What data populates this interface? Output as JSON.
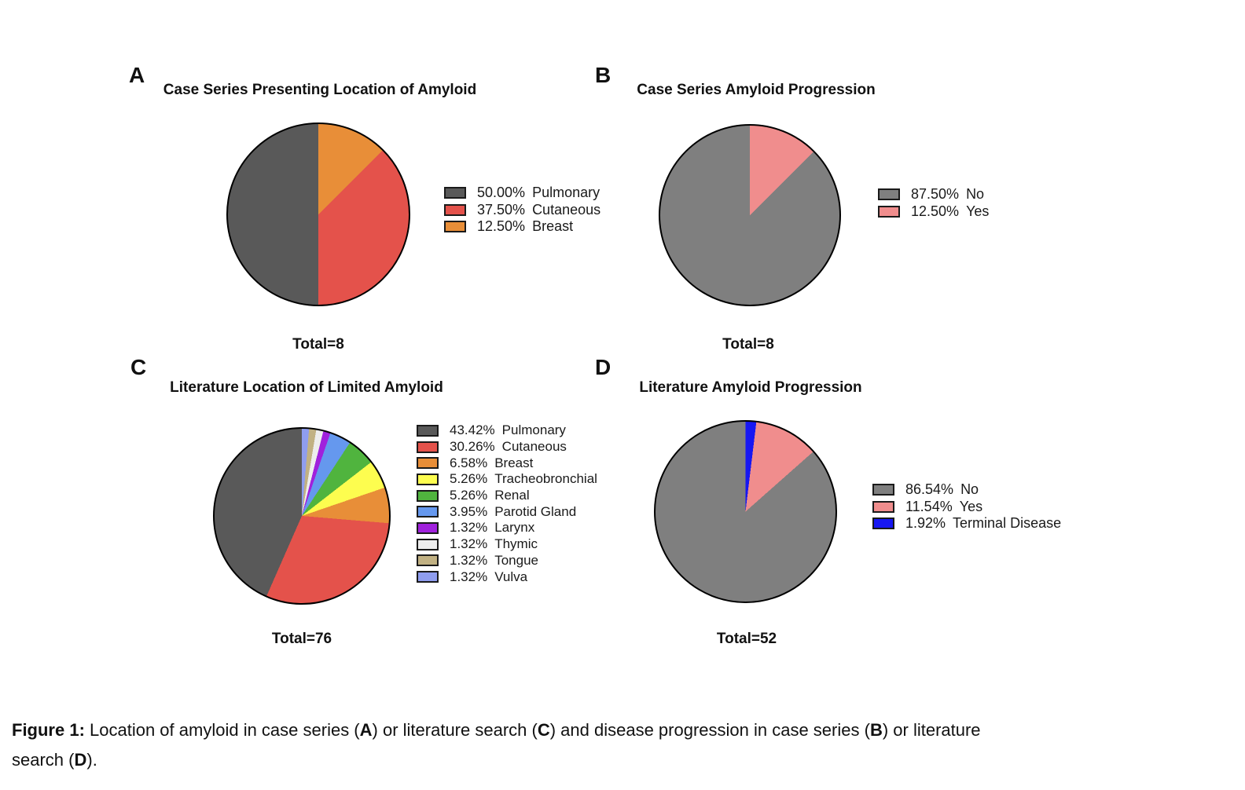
{
  "chart_data": [
    {
      "id": "A",
      "panel_label": "A",
      "type": "pie",
      "title": "Case Series Presenting Location of Amyloid",
      "total_label": "Total=8",
      "total": 8,
      "legend_position": "right",
      "slice_draw_order": "reverse legend order, clockwise from 12 o'clock",
      "slices": [
        {
          "pct": "50.00%",
          "value": 50.0,
          "label": "Pulmonary",
          "color": "#595959"
        },
        {
          "pct": "37.50%",
          "value": 37.5,
          "label": "Cutaneous",
          "color": "#E4524B"
        },
        {
          "pct": "12.50%",
          "value": 12.5,
          "label": "Breast",
          "color": "#E88E38"
        }
      ]
    },
    {
      "id": "B",
      "panel_label": "B",
      "type": "pie",
      "title": "Case Series Amyloid Progression",
      "total_label": "Total=8",
      "total": 8,
      "legend_position": "right",
      "slice_draw_order": "reverse legend order, clockwise from 12 o'clock",
      "slices": [
        {
          "pct": "87.50%",
          "value": 87.5,
          "label": "No",
          "color": "#7F7F7F"
        },
        {
          "pct": "12.50%",
          "value": 12.5,
          "label": "Yes",
          "color": "#F08D8D"
        }
      ]
    },
    {
      "id": "C",
      "panel_label": "C",
      "type": "pie",
      "title": "Literature Location of Limited Amyloid",
      "total_label": "Total=76",
      "total": 76,
      "legend_position": "right",
      "slice_draw_order": "reverse legend order, clockwise from 12 o'clock",
      "slices": [
        {
          "pct": "43.42%",
          "value": 43.42,
          "label": "Pulmonary",
          "color": "#595959"
        },
        {
          "pct": "30.26%",
          "value": 30.26,
          "label": "Cutaneous",
          "color": "#E4524B"
        },
        {
          "pct": "6.58%",
          "value": 6.58,
          "label": "Breast",
          "color": "#E88E38"
        },
        {
          "pct": "5.26%",
          "value": 5.26,
          "label": "Tracheobronchial",
          "color": "#FDFD4F"
        },
        {
          "pct": "5.26%",
          "value": 5.26,
          "label": "Renal",
          "color": "#50B43E"
        },
        {
          "pct": "3.95%",
          "value": 3.95,
          "label": "Parotid Gland",
          "color": "#6598EE"
        },
        {
          "pct": "1.32%",
          "value": 1.32,
          "label": "Larynx",
          "color": "#A021DC"
        },
        {
          "pct": "1.32%",
          "value": 1.32,
          "label": "Thymic",
          "color": "#EDEDED"
        },
        {
          "pct": "1.32%",
          "value": 1.32,
          "label": "Tongue",
          "color": "#C1B183"
        },
        {
          "pct": "1.32%",
          "value": 1.32,
          "label": "Vulva",
          "color": "#8F9DEF"
        }
      ]
    },
    {
      "id": "D",
      "panel_label": "D",
      "type": "pie",
      "title": "Literature Amyloid Progression",
      "total_label": "Total=52",
      "total": 52,
      "legend_position": "right",
      "slice_draw_order": "reverse legend order, clockwise from 12 o'clock",
      "slices": [
        {
          "pct": "86.54%",
          "value": 86.54,
          "label": "No",
          "color": "#7F7F7F"
        },
        {
          "pct": "11.54%",
          "value": 11.54,
          "label": "Yes",
          "color": "#F08D8D"
        },
        {
          "pct": "1.92%",
          "value": 1.92,
          "label": "Terminal Disease",
          "color": "#1717F2"
        }
      ]
    }
  ],
  "figure": {
    "caption_lines": [
      [
        {
          "text": "Figure 1:",
          "bold": true
        },
        {
          "text": " Location of amyloid in case series (",
          "bold": false
        },
        {
          "text": "A",
          "bold": true
        },
        {
          "text": ") or literature search (",
          "bold": false
        },
        {
          "text": "C",
          "bold": true
        },
        {
          "text": ") and disease progression in case series (",
          "bold": false
        },
        {
          "text": "B",
          "bold": true
        },
        {
          "text": ") or literature",
          "bold": false
        }
      ],
      [
        {
          "text": "search (",
          "bold": false
        },
        {
          "text": "D",
          "bold": true
        },
        {
          "text": ").",
          "bold": false
        }
      ]
    ]
  }
}
